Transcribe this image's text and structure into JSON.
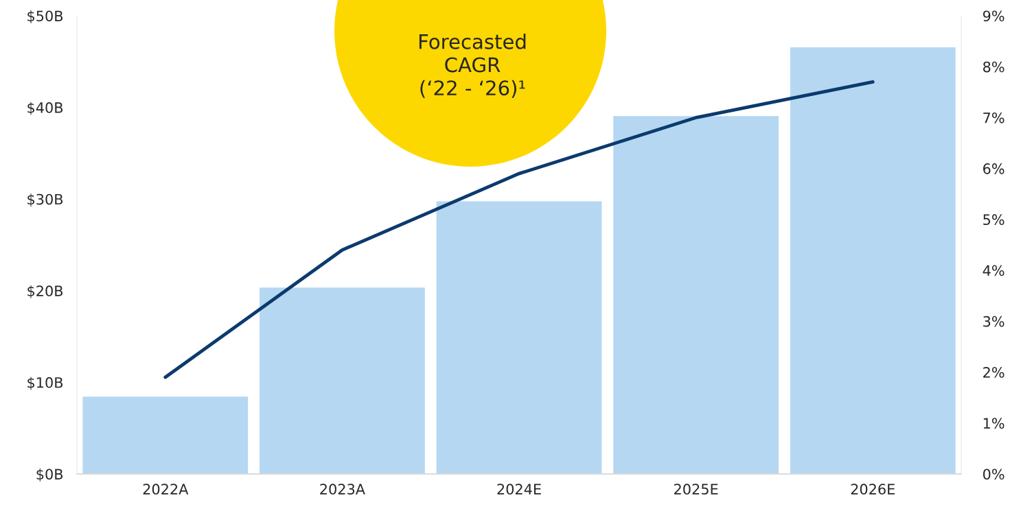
{
  "chart_data": {
    "type": "bar",
    "categories": [
      "2022A",
      "2023A",
      "2024E",
      "2025E",
      "2026E"
    ],
    "series": [
      {
        "color": "#b5d7f2",
        "values": [
          8.5,
          20.4,
          29.8,
          39.1,
          46.6
        ]
      },
      {
        "type": "line",
        "axis": "y2",
        "color": "#0b3a6e",
        "values": [
          1.9,
          4.4,
          5.9,
          7.0,
          7.7
        ]
      }
    ],
    "ylim": [
      0,
      50
    ],
    "yticks": [
      {
        "value": 0,
        "label": "$0B"
      },
      {
        "value": 10,
        "label": "$10B"
      },
      {
        "value": 20,
        "label": "$20B"
      },
      {
        "value": 30,
        "label": "$30B"
      },
      {
        "value": 40,
        "label": "$40B"
      },
      {
        "value": 50,
        "label": "$50B"
      }
    ],
    "y2lim": [
      0,
      9
    ],
    "y2ticks": [
      {
        "value": 0,
        "label": "0%"
      },
      {
        "value": 1,
        "label": "1%"
      },
      {
        "value": 2,
        "label": "2%"
      },
      {
        "value": 3,
        "label": "3%"
      },
      {
        "value": 4,
        "label": "4%"
      },
      {
        "value": 5,
        "label": "5%"
      },
      {
        "value": 6,
        "label": "6%"
      },
      {
        "value": 7,
        "label": "7%"
      },
      {
        "value": 8,
        "label": "8%"
      },
      {
        "value": 9,
        "label": "9%"
      }
    ],
    "annotations": [
      "Forecasted\nCAGR\n(‘22 - ‘26)¹"
    ],
    "grid": false,
    "legend": false,
    "marker": "none",
    "line_style": "solid"
  }
}
